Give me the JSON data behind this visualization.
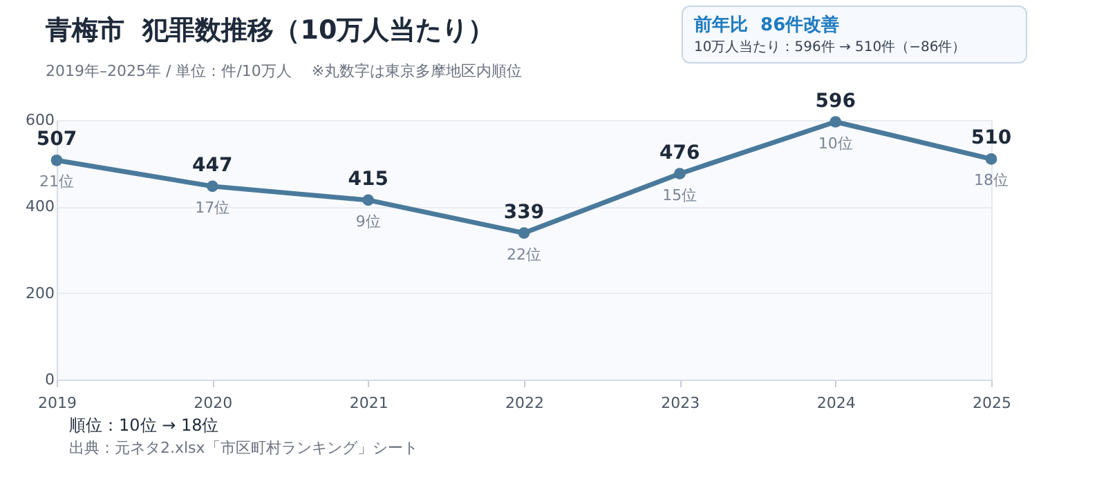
{
  "chart_data": {
    "type": "line",
    "title": "青梅市  犯罪数推移（10万人当たり）",
    "subtitle": "2019年–2025年 / 単位：件/10万人　 ※丸数字は東京多摩地区内順位",
    "categories": [
      "2019",
      "2020",
      "2021",
      "2022",
      "2023",
      "2024",
      "2025"
    ],
    "series": [
      {
        "color": "#4a7a9b",
        "values": [
          507,
          447,
          415,
          339,
          476,
          596,
          510
        ]
      }
    ],
    "ylim": [
      0,
      600
    ],
    "yticks": [
      0,
      200,
      400,
      600
    ],
    "grid": "y",
    "marker": "circle",
    "line_style": "solid",
    "data_labels": true,
    "legend": false,
    "annotations": [
      "前年比  86件改善",
      "10万人当たり：596件 → 510件（−86件）",
      "順位：10位 → 18位",
      "出典：元ネタ2.xlsx「市区町村ランキング」シート",
      {
        "text": "21位",
        "x": "2019",
        "y": 507
      },
      {
        "text": "17位",
        "x": "2020",
        "y": 447
      },
      {
        "text": "9位",
        "x": "2021",
        "y": 415
      },
      {
        "text": "22位",
        "x": "2022",
        "y": 339
      },
      {
        "text": "15位",
        "x": "2023",
        "y": 476
      },
      {
        "text": "10位",
        "x": "2024",
        "y": 596
      },
      {
        "text": "18位",
        "x": "2025",
        "y": 510
      }
    ]
  }
}
